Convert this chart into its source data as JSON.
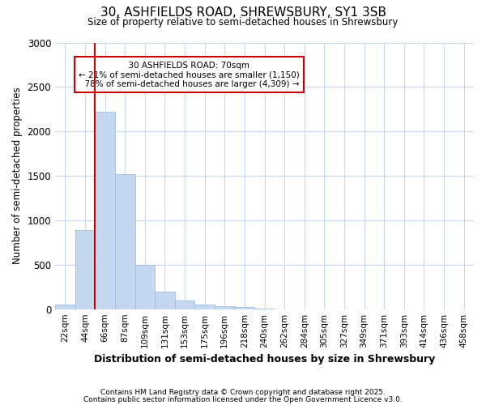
{
  "title1": "30, ASHFIELDS ROAD, SHREWSBURY, SY1 3SB",
  "title2": "Size of property relative to semi-detached houses in Shrewsbury",
  "xlabel": "Distribution of semi-detached houses by size in Shrewsbury",
  "ylabel": "Number of semi-detached properties",
  "bar_color": "#c5d8f0",
  "bar_edge_color": "#a0bde0",
  "bg_color": "#ffffff",
  "fig_color": "#ffffff",
  "grid_color": "#c8d8f0",
  "annotation_box_color": "#cc0000",
  "vline_color": "#cc0000",
  "bin_labels": [
    "22sqm",
    "44sqm",
    "66sqm",
    "87sqm",
    "109sqm",
    "131sqm",
    "153sqm",
    "175sqm",
    "196sqm",
    "218sqm",
    "240sqm",
    "262sqm",
    "284sqm",
    "305sqm",
    "327sqm",
    "349sqm",
    "371sqm",
    "393sqm",
    "414sqm",
    "436sqm",
    "458sqm"
  ],
  "bar_heights": [
    50,
    890,
    2220,
    1520,
    500,
    200,
    100,
    50,
    30,
    20,
    10,
    0,
    0,
    0,
    0,
    0,
    0,
    0,
    0,
    0,
    0
  ],
  "ylim": [
    0,
    3000
  ],
  "yticks": [
    0,
    500,
    1000,
    1500,
    2000,
    2500,
    3000
  ],
  "property_label": "30 ASHFIELDS ROAD: 70sqm",
  "pct_smaller": "21%",
  "n_smaller": "1,150",
  "pct_larger": "78%",
  "n_larger": "4,309",
  "vline_x_idx": 2,
  "footnote1": "Contains HM Land Registry data © Crown copyright and database right 2025.",
  "footnote2": "Contains public sector information licensed under the Open Government Licence v3.0."
}
